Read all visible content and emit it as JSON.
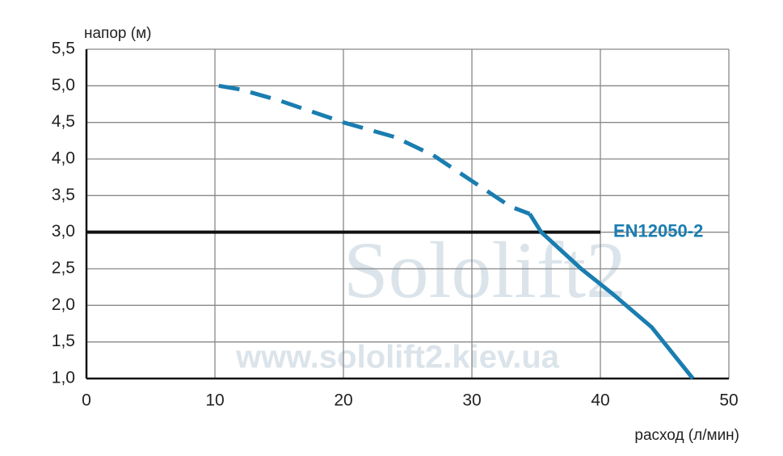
{
  "chart_data": {
    "type": "line",
    "xlabel": "расход (л/мин)",
    "ylabel": "напор (м)",
    "xlim": [
      0,
      50
    ],
    "xticks": [
      0,
      10,
      20,
      30,
      40,
      50
    ],
    "ylim": [
      1.0,
      5.5
    ],
    "yticks": [
      {
        "value": 1.0,
        "label": "1,0"
      },
      {
        "value": 1.5,
        "label": "1,5"
      },
      {
        "value": 2.0,
        "label": "2,0"
      },
      {
        "value": 2.5,
        "label": "2,5"
      },
      {
        "value": 3.0,
        "label": "3,0"
      },
      {
        "value": 3.5,
        "label": "3,5"
      },
      {
        "value": 4.0,
        "label": "4,0"
      },
      {
        "value": 4.5,
        "label": "4,5"
      },
      {
        "value": 5.0,
        "label": "5,0"
      },
      {
        "value": 5.5,
        "label": "5,5"
      }
    ],
    "grid": true,
    "series": [
      {
        "color": "#1a7db0",
        "style": "dashed",
        "x": [
          10.3,
          12,
          15,
          20,
          24,
          27,
          30,
          33,
          34.5
        ],
        "values": [
          5.0,
          4.95,
          4.8,
          4.5,
          4.3,
          4.05,
          3.7,
          3.35,
          3.25
        ]
      },
      {
        "color": "#1a7db0",
        "style": "solid",
        "x": [
          34.5,
          35.4,
          38.5,
          41,
          44,
          47.2
        ],
        "values": [
          3.25,
          3.0,
          2.5,
          2.15,
          1.7,
          1.0
        ]
      }
    ],
    "reference_line": {
      "value": 3.0,
      "xrange": [
        0,
        40
      ],
      "label": "EN12050-2",
      "color": "#1a7db0"
    },
    "watermark": [
      "Sololift2",
      "www.sololift2.kiev.ua"
    ]
  }
}
